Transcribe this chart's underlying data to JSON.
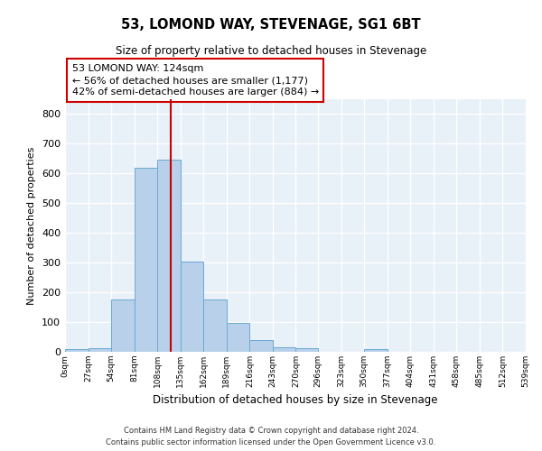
{
  "title": "53, LOMOND WAY, STEVENAGE, SG1 6BT",
  "subtitle": "Size of property relative to detached houses in Stevenage",
  "xlabel": "Distribution of detached houses by size in Stevenage",
  "ylabel": "Number of detached properties",
  "footer_line1": "Contains HM Land Registry data © Crown copyright and database right 2024.",
  "footer_line2": "Contains public sector information licensed under the Open Government Licence v3.0.",
  "bin_edges": [
    0,
    27,
    54,
    81,
    108,
    135,
    162,
    189,
    216,
    243,
    270,
    296,
    323,
    350,
    377,
    404,
    431,
    458,
    485,
    512,
    539
  ],
  "bar_heights": [
    8,
    13,
    175,
    618,
    648,
    305,
    175,
    97,
    38,
    15,
    11,
    0,
    0,
    8,
    0,
    0,
    0,
    0,
    0,
    0
  ],
  "bar_color": "#b8d0ea",
  "bar_edge_color": "#6aaad4",
  "bg_color": "#e8f0f8",
  "grid_color": "#ffffff",
  "vline_x": 124,
  "vline_color": "#cc0000",
  "annotation_text": "53 LOMOND WAY: 124sqm\n← 56% of detached houses are smaller (1,177)\n42% of semi-detached houses are larger (884) →",
  "annotation_box_edge": "#cc0000",
  "ylim": [
    0,
    850
  ],
  "xlim": [
    0,
    539
  ],
  "tick_labels": [
    "0sqm",
    "27sqm",
    "54sqm",
    "81sqm",
    "108sqm",
    "135sqm",
    "162sqm",
    "189sqm",
    "216sqm",
    "243sqm",
    "270sqm",
    "296sqm",
    "323sqm",
    "350sqm",
    "377sqm",
    "404sqm",
    "431sqm",
    "458sqm",
    "485sqm",
    "512sqm",
    "539sqm"
  ],
  "ytick_vals": [
    0,
    100,
    200,
    300,
    400,
    500,
    600,
    700,
    800
  ]
}
